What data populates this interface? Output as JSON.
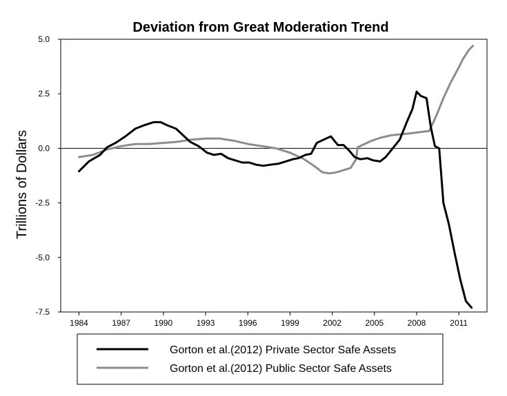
{
  "chart_data": {
    "type": "line",
    "title": "Deviation from Great Moderation Trend",
    "xlabel": "",
    "ylabel": "Trillions of Dollars",
    "xlim": [
      1982.7,
      2013.0
    ],
    "ylim": [
      -7.5,
      5.0
    ],
    "x_ticks": [
      "1984",
      "1987",
      "1990",
      "1993",
      "1996",
      "1999",
      "2002",
      "2005",
      "2008",
      "2011"
    ],
    "y_ticks": [
      "5.0",
      "2.5",
      "0.0",
      "-2.5",
      "-5.0",
      "-7.5"
    ],
    "zero_line": true,
    "grid": false,
    "legend_position": "bottom",
    "series": [
      {
        "name": "Gorton et al.(2012) Private Sector Safe Assets",
        "color": "#000000",
        "x": [
          1984.0,
          1984.7,
          1985.5,
          1986.0,
          1986.6,
          1987.3,
          1988.0,
          1988.6,
          1989.3,
          1989.8,
          1990.3,
          1990.9,
          1991.4,
          1991.9,
          1992.5,
          1993.1,
          1993.6,
          1994.1,
          1994.6,
          1995.1,
          1995.6,
          1996.1,
          1996.6,
          1997.1,
          1997.6,
          1998.2,
          1998.7,
          1999.2,
          1999.6,
          2000.1,
          2000.5,
          2000.9,
          2001.4,
          2001.9,
          2002.4,
          2002.8,
          2003.2,
          2003.6,
          2004.0,
          2004.5,
          2004.9,
          2005.4,
          2005.8,
          2006.3,
          2006.8,
          2007.3,
          2007.7,
          2008.0,
          2008.3,
          2008.7,
          2009.0,
          2009.3,
          2009.6,
          2009.9,
          2010.3,
          2010.7,
          2011.1,
          2011.5,
          2011.9
        ],
        "values": [
          -1.05,
          -0.6,
          -0.3,
          0.05,
          0.25,
          0.55,
          0.9,
          1.05,
          1.2,
          1.2,
          1.05,
          0.9,
          0.6,
          0.3,
          0.1,
          -0.2,
          -0.3,
          -0.25,
          -0.45,
          -0.55,
          -0.65,
          -0.65,
          -0.75,
          -0.8,
          -0.75,
          -0.7,
          -0.6,
          -0.5,
          -0.45,
          -0.3,
          -0.25,
          0.25,
          0.4,
          0.55,
          0.15,
          0.15,
          -0.1,
          -0.4,
          -0.5,
          -0.45,
          -0.55,
          -0.6,
          -0.4,
          0.0,
          0.4,
          1.2,
          1.8,
          2.6,
          2.4,
          2.3,
          1.0,
          0.1,
          0.0,
          -2.5,
          -3.5,
          -4.8,
          -6.0,
          -7.0,
          -7.3
        ]
      },
      {
        "name": "Gorton et al.(2012) Public Sector Safe Assets",
        "color": "#8c8c8c",
        "x": [
          1984.0,
          1985.0,
          1986.0,
          1987.0,
          1988.0,
          1989.0,
          1990.0,
          1991.0,
          1992.0,
          1993.0,
          1994.0,
          1995.0,
          1996.0,
          1997.0,
          1998.0,
          1999.0,
          2000.0,
          2000.7,
          2001.3,
          2001.8,
          2002.3,
          2002.8,
          2003.3,
          2003.7,
          2003.8,
          2004.3,
          2004.8,
          2005.5,
          2006.2,
          2007.0,
          2007.7,
          2008.3,
          2008.9,
          2009.4,
          2009.9,
          2010.4,
          2010.9,
          2011.3,
          2011.7,
          2012.0
        ],
        "values": [
          -0.4,
          -0.3,
          -0.05,
          0.1,
          0.2,
          0.2,
          0.25,
          0.3,
          0.4,
          0.45,
          0.45,
          0.35,
          0.2,
          0.1,
          0.0,
          -0.2,
          -0.5,
          -0.8,
          -1.1,
          -1.15,
          -1.1,
          -1.0,
          -0.9,
          -0.5,
          0.05,
          0.2,
          0.35,
          0.5,
          0.6,
          0.65,
          0.7,
          0.75,
          0.8,
          1.5,
          2.3,
          3.0,
          3.6,
          4.1,
          4.5,
          4.7
        ]
      }
    ]
  }
}
